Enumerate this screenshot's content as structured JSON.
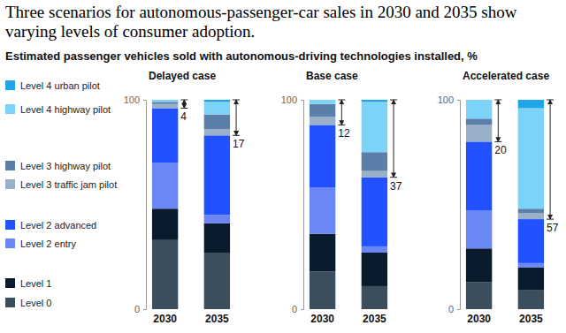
{
  "title": "Three scenarios for autonomous-passenger-car sales in 2030 and 2035 show varying levels of consumer adoption.",
  "subtitle": "Estimated passenger vehicles sold with autonomous-driving technologies installed, %",
  "chart_data": [
    {
      "type": "bar",
      "title": "Delayed case",
      "stacked": true,
      "legend": "left",
      "categories": [
        "2030",
        "2035"
      ],
      "ylim": [
        0,
        100
      ],
      "yticks": [
        0,
        100
      ],
      "annotations": [
        4,
        17
      ],
      "series": [
        {
          "name": "Level 0",
          "color": "#3c4d5c",
          "values": [
            33,
            27
          ]
        },
        {
          "name": "Level 1",
          "color": "#0b1b2e",
          "values": [
            15,
            14
          ]
        },
        {
          "name": "Level 2 entry",
          "color": "#6b87f5",
          "values": [
            22,
            4
          ]
        },
        {
          "name": "Level 2 advanced",
          "color": "#2251ff",
          "values": [
            26,
            38
          ]
        },
        {
          "name": "Level 3 traffic jam pilot",
          "color": "#9ab0c9",
          "values": [
            2,
            3
          ]
        },
        {
          "name": "Level 3 highway pilot",
          "color": "#5a7fa8",
          "values": [
            1,
            7
          ]
        },
        {
          "name": "Level 4 highway pilot",
          "color": "#7dd3f7",
          "values": [
            1,
            6
          ]
        },
        {
          "name": "Level 4 urban pilot",
          "color": "#1fa5e8",
          "values": [
            0,
            1
          ]
        }
      ]
    },
    {
      "type": "bar",
      "title": "Base case",
      "stacked": true,
      "categories": [
        "2030",
        "2035"
      ],
      "ylim": [
        0,
        100
      ],
      "yticks": [
        0,
        100
      ],
      "annotations": [
        12,
        37
      ],
      "series": [
        {
          "name": "Level 0",
          "color": "#3c4d5c",
          "values": [
            18,
            11
          ]
        },
        {
          "name": "Level 1",
          "color": "#0b1b2e",
          "values": [
            18,
            16
          ]
        },
        {
          "name": "Level 2 entry",
          "color": "#6b87f5",
          "values": [
            22,
            3
          ]
        },
        {
          "name": "Level 2 advanced",
          "color": "#2251ff",
          "values": [
            30,
            33
          ]
        },
        {
          "name": "Level 3 traffic jam pilot",
          "color": "#9ab0c9",
          "values": [
            4,
            3
          ]
        },
        {
          "name": "Level 3 highway pilot",
          "color": "#5a7fa8",
          "values": [
            6,
            9
          ]
        },
        {
          "name": "Level 4 highway pilot",
          "color": "#7dd3f7",
          "values": [
            2,
            24
          ]
        },
        {
          "name": "Level 4 urban pilot",
          "color": "#1fa5e8",
          "values": [
            0,
            1
          ]
        }
      ]
    },
    {
      "type": "bar",
      "title": "Accelerated case",
      "stacked": true,
      "categories": [
        "2030",
        "2035"
      ],
      "ylim": [
        0,
        100
      ],
      "yticks": [
        0,
        100
      ],
      "annotations": [
        20,
        57
      ],
      "series": [
        {
          "name": "Level 0",
          "color": "#3c4d5c",
          "values": [
            13,
            9
          ]
        },
        {
          "name": "Level 1",
          "color": "#0b1b2e",
          "values": [
            16,
            11
          ]
        },
        {
          "name": "Level 2 entry",
          "color": "#6b87f5",
          "values": [
            18,
            2
          ]
        },
        {
          "name": "Level 2 advanced",
          "color": "#2251ff",
          "values": [
            33,
            21
          ]
        },
        {
          "name": "Level 3 traffic jam pilot",
          "color": "#9ab0c9",
          "values": [
            8,
            3
          ]
        },
        {
          "name": "Level 3 highway pilot",
          "color": "#5a7fa8",
          "values": [
            3,
            2
          ]
        },
        {
          "name": "Level 4 highway pilot",
          "color": "#7dd3f7",
          "values": [
            9,
            48
          ]
        },
        {
          "name": "Level 4 urban pilot",
          "color": "#1fa5e8",
          "values": [
            0,
            4
          ]
        }
      ]
    }
  ]
}
